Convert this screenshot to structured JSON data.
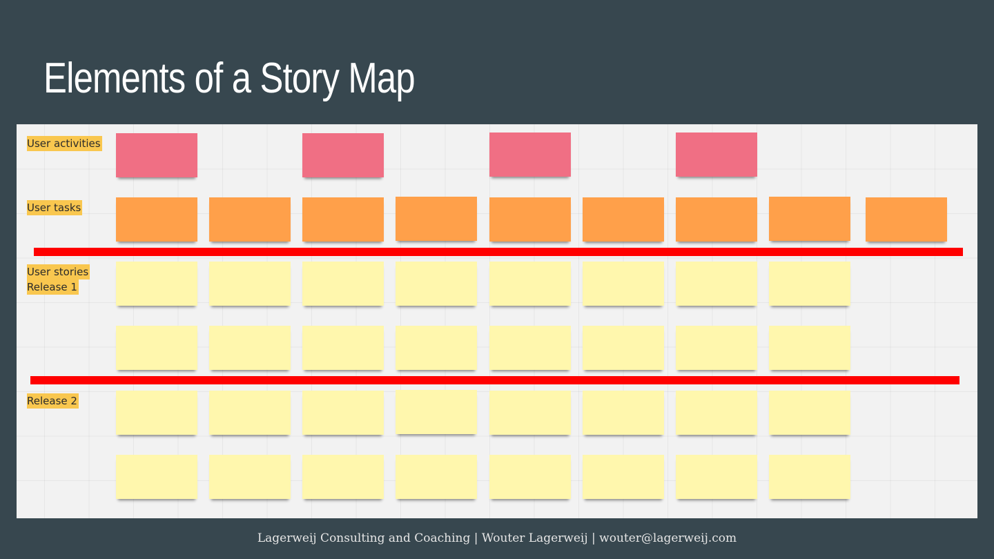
{
  "slide": {
    "title": "Elements of a Story Map",
    "footer": "Lagerweij Consulting and Coaching | Wouter Lagerweij | wouter@lagerweij.com"
  },
  "labels": {
    "user_activities": "User activities",
    "user_tasks": "User tasks",
    "user_stories": "User stories",
    "release_1": "Release 1",
    "release_2": "Release 2"
  },
  "colors": {
    "background": "#37474f",
    "board": "#f2f2f2",
    "label_highlight": "#f9c74f",
    "activity_note": "#f06f84",
    "task_note": "#ffa04a",
    "story_note": "#fff7ad",
    "release_line": "#ff0000"
  }
}
